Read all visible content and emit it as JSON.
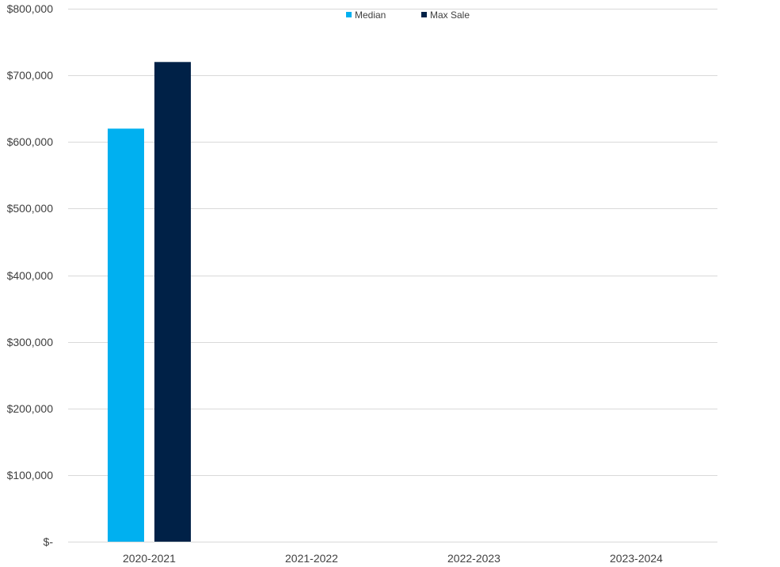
{
  "chart_data": {
    "type": "bar",
    "categories": [
      "2020-2021",
      "2021-2022",
      "2022-2023",
      "2023-2024"
    ],
    "series": [
      {
        "name": "Median",
        "values": [
          620000,
          null,
          null,
          null
        ],
        "color": "#00b0f0"
      },
      {
        "name": "Max Sale",
        "values": [
          720000,
          null,
          null,
          null
        ],
        "color": "#002147"
      }
    ],
    "ylim": [
      0,
      800000
    ],
    "y_ticks": [
      0,
      100000,
      200000,
      300000,
      400000,
      500000,
      600000,
      700000,
      800000
    ],
    "y_tick_labels": [
      "$-",
      "$100,000",
      "$200,000",
      "$300,000",
      "$400,000",
      "$500,000",
      "$600,000",
      "$700,000",
      "$800,000"
    ],
    "title": "",
    "xlabel": "",
    "ylabel": "",
    "grid": true,
    "legend_position": "top-center"
  }
}
